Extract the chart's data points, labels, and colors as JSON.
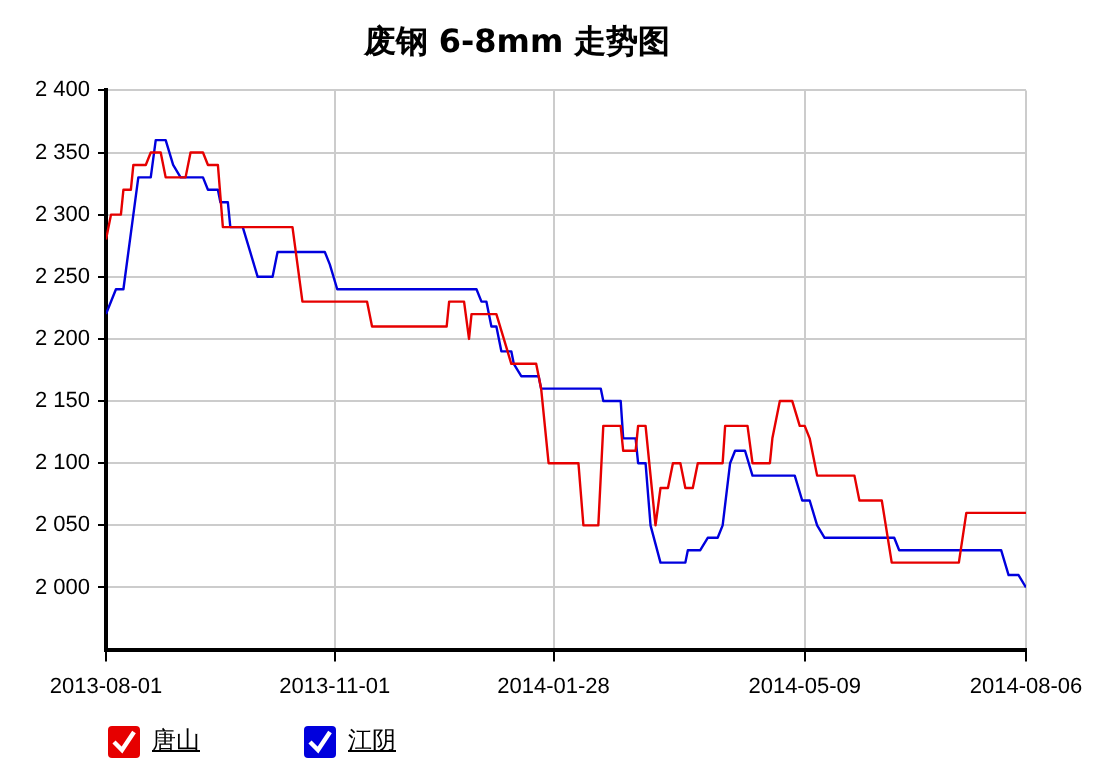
{
  "chart_data": {
    "type": "line",
    "title": "废钢 6-8mm 走势图",
    "xlim": [
      "2013-08-01",
      "2014-08-06"
    ],
    "xticks": [
      "2013-08-01",
      "2013-11-01",
      "2014-01-28",
      "2014-05-09",
      "2014-08-06"
    ],
    "ylim": [
      1950,
      2400
    ],
    "yticks": [
      {
        "value": 2000,
        "label": "2 000"
      },
      {
        "value": 2050,
        "label": "2 050"
      },
      {
        "value": 2100,
        "label": "2 100"
      },
      {
        "value": 2150,
        "label": "2 150"
      },
      {
        "value": 2200,
        "label": "2 200"
      },
      {
        "value": 2250,
        "label": "2 250"
      },
      {
        "value": 2300,
        "label": "2 300"
      },
      {
        "value": 2350,
        "label": "2 350"
      },
      {
        "value": 2400,
        "label": "2 400"
      }
    ],
    "grid": true,
    "legend": "bottom left",
    "marker": "none",
    "line_style": "solid",
    "series": [
      {
        "name": "唐山",
        "color": "#e60000",
        "x": [
          "2013-08-01",
          "2013-08-03",
          "2013-08-07",
          "2013-08-08",
          "2013-08-11",
          "2013-08-12",
          "2013-08-17",
          "2013-08-19",
          "2013-08-23",
          "2013-08-25",
          "2013-09-02",
          "2013-09-04",
          "2013-09-09",
          "2013-09-11",
          "2013-09-15",
          "2013-09-17",
          "2013-10-15",
          "2013-10-19",
          "2013-11-14",
          "2013-11-16",
          "2013-12-16",
          "2013-12-17",
          "2013-12-23",
          "2013-12-25",
          "2013-12-26",
          "2014-01-05",
          "2014-01-08",
          "2014-01-11",
          "2014-01-21",
          "2014-01-23",
          "2014-01-26",
          "2014-02-07",
          "2014-02-09",
          "2014-02-15",
          "2014-02-17",
          "2014-02-24",
          "2014-02-25",
          "2014-03-02",
          "2014-03-03",
          "2014-03-06",
          "2014-03-10",
          "2014-03-12",
          "2014-03-15",
          "2014-03-17",
          "2014-03-20",
          "2014-03-22",
          "2014-03-25",
          "2014-03-27",
          "2014-04-06",
          "2014-04-07",
          "2014-04-16",
          "2014-04-18",
          "2014-04-25",
          "2014-04-26",
          "2014-04-29",
          "2014-05-04",
          "2014-05-07",
          "2014-05-09",
          "2014-05-11",
          "2014-05-14",
          "2014-05-29",
          "2014-05-31",
          "2014-06-09",
          "2014-06-13",
          "2014-07-10",
          "2014-07-13",
          "2014-08-06"
        ],
        "values": [
          2280,
          2300,
          2300,
          2320,
          2320,
          2340,
          2340,
          2350,
          2350,
          2330,
          2330,
          2350,
          2350,
          2340,
          2340,
          2290,
          2290,
          2230,
          2230,
          2210,
          2210,
          2230,
          2230,
          2200,
          2220,
          2220,
          2200,
          2180,
          2180,
          2160,
          2100,
          2100,
          2050,
          2050,
          2130,
          2130,
          2110,
          2110,
          2130,
          2130,
          2050,
          2080,
          2080,
          2100,
          2100,
          2080,
          2080,
          2100,
          2100,
          2130,
          2130,
          2100,
          2100,
          2120,
          2150,
          2150,
          2130,
          2130,
          2120,
          2090,
          2090,
          2070,
          2070,
          2020,
          2020,
          2060,
          2060
        ]
      },
      {
        "name": "江阴",
        "color": "#0000dd",
        "x": [
          "2013-08-01",
          "2013-08-05",
          "2013-08-08",
          "2013-08-14",
          "2013-08-19",
          "2013-08-21",
          "2013-08-25",
          "2013-08-28",
          "2013-08-31",
          "2013-09-09",
          "2013-09-11",
          "2013-09-15",
          "2013-09-16",
          "2013-09-19",
          "2013-09-20",
          "2013-09-25",
          "2013-09-28",
          "2013-10-01",
          "2013-10-07",
          "2013-10-09",
          "2013-10-28",
          "2013-10-30",
          "2013-11-02",
          "2013-12-28",
          "2013-12-30",
          "2014-01-01",
          "2014-01-03",
          "2014-01-05",
          "2014-01-07",
          "2014-01-11",
          "2014-01-12",
          "2014-01-15",
          "2014-01-22",
          "2014-01-23",
          "2014-02-16",
          "2014-02-17",
          "2014-02-24",
          "2014-02-25",
          "2014-03-02",
          "2014-03-03",
          "2014-03-06",
          "2014-03-08",
          "2014-03-12",
          "2014-03-22",
          "2014-03-23",
          "2014-03-28",
          "2014-03-31",
          "2014-04-04",
          "2014-04-06",
          "2014-04-09",
          "2014-04-11",
          "2014-04-15",
          "2014-04-18",
          "2014-05-05",
          "2014-05-08",
          "2014-05-11",
          "2014-05-14",
          "2014-05-17",
          "2014-06-14",
          "2014-06-16",
          "2014-07-27",
          "2014-07-30",
          "2014-08-03",
          "2014-08-06"
        ],
        "values": [
          2220,
          2240,
          2240,
          2330,
          2330,
          2360,
          2360,
          2340,
          2330,
          2330,
          2320,
          2320,
          2310,
          2310,
          2290,
          2290,
          2270,
          2250,
          2250,
          2270,
          2270,
          2260,
          2240,
          2240,
          2230,
          2230,
          2210,
          2210,
          2190,
          2190,
          2180,
          2170,
          2170,
          2160,
          2160,
          2150,
          2150,
          2120,
          2120,
          2100,
          2100,
          2050,
          2020,
          2020,
          2030,
          2030,
          2040,
          2040,
          2050,
          2100,
          2110,
          2110,
          2090,
          2090,
          2070,
          2070,
          2050,
          2040,
          2040,
          2030,
          2030,
          2010,
          2010,
          2000
        ]
      }
    ]
  }
}
